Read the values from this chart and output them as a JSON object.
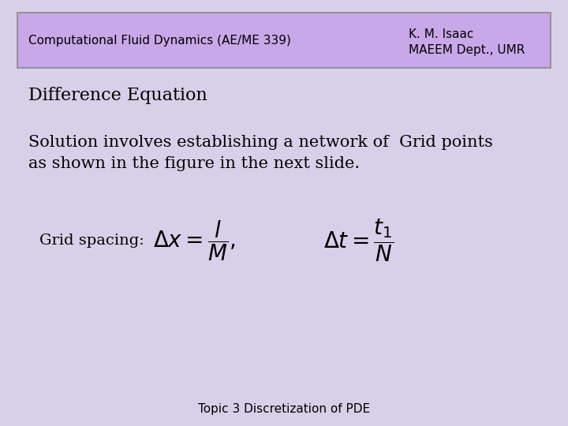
{
  "bg_color": "#d8d0e8",
  "header_bg": "#c8a8e8",
  "header_left": "Computational Fluid Dynamics (AE/ME 339)",
  "header_right_line1": "K. M. Isaac",
  "header_right_line2": "MAEEM Dept., UMR",
  "title": "Difference Equation",
  "body_line1": "Solution involves establishing a network of  Grid points",
  "body_line2": "as shown in the figure in the next slide.",
  "grid_label": "Grid spacing:",
  "formula1": "$\\Delta x = \\dfrac{l}{M},$",
  "formula2": "$\\Delta t = \\dfrac{t_1}{N}$",
  "footer": "Topic 3 Discretization of PDE",
  "header_font_size": 11,
  "title_font_size": 16,
  "body_font_size": 15,
  "grid_label_font_size": 14,
  "formula_font_size": 20,
  "footer_font_size": 11
}
